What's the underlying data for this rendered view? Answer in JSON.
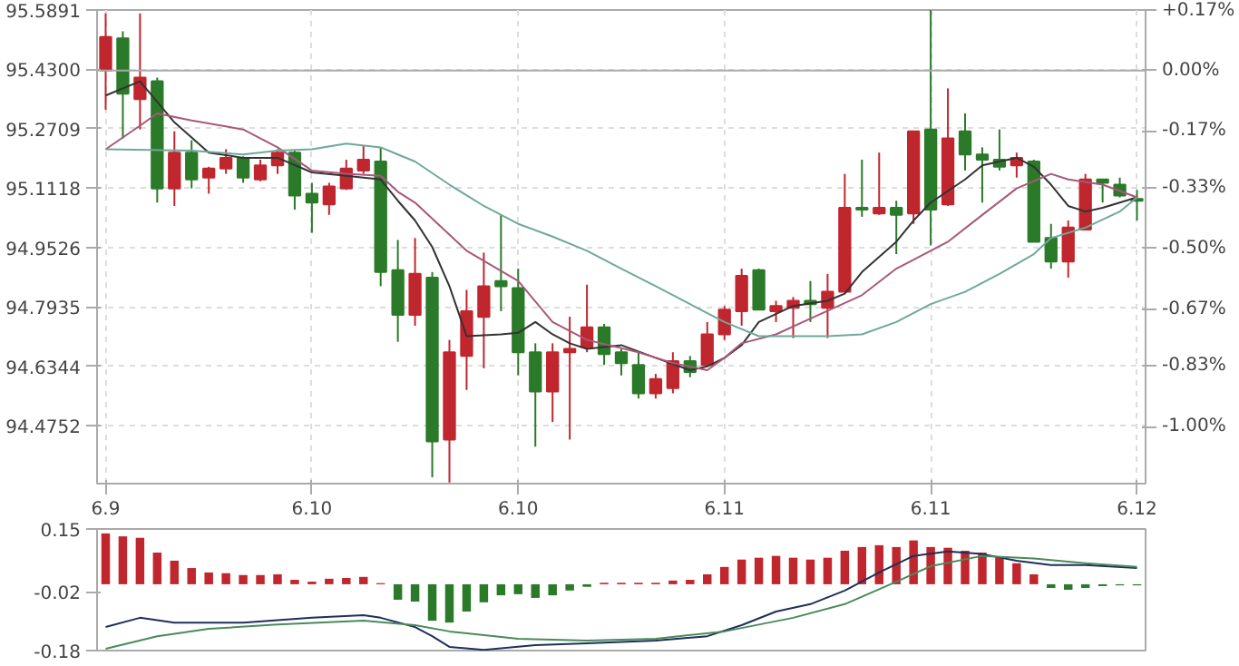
{
  "chart_data": [
    {
      "type": "candlestick",
      "categories": [
        "6.9",
        null,
        null,
        null,
        null,
        null,
        null,
        null,
        null,
        null,
        null,
        null,
        "6.10",
        null,
        null,
        null,
        null,
        null,
        null,
        null,
        null,
        null,
        null,
        null,
        "6.10",
        null,
        null,
        null,
        null,
        null,
        null,
        null,
        null,
        null,
        null,
        null,
        "6.11",
        null,
        null,
        null,
        null,
        null,
        null,
        null,
        null,
        null,
        null,
        null,
        "6.11",
        null,
        null,
        null,
        null,
        null,
        null,
        null,
        null,
        null,
        null,
        null,
        "6.12"
      ],
      "ohlc": [
        [
          95.427,
          95.58,
          95.322,
          95.517
        ],
        [
          95.513,
          95.532,
          95.245,
          95.365
        ],
        [
          95.35,
          95.58,
          95.269,
          95.408
        ],
        [
          95.398,
          95.408,
          95.073,
          95.111
        ],
        [
          95.111,
          95.264,
          95.064,
          95.207
        ],
        [
          95.207,
          95.24,
          95.111,
          95.135
        ],
        [
          95.14,
          95.169,
          95.097,
          95.164
        ],
        [
          95.164,
          95.216,
          95.15,
          95.193
        ],
        [
          95.193,
          95.197,
          95.126,
          95.14
        ],
        [
          95.135,
          95.188,
          95.13,
          95.173
        ],
        [
          95.173,
          95.216,
          95.15,
          95.207
        ],
        [
          95.207,
          95.212,
          95.054,
          95.092
        ],
        [
          95.097,
          95.126,
          94.992,
          95.073
        ],
        [
          95.068,
          95.126,
          95.04,
          95.116
        ],
        [
          95.111,
          95.188,
          95.107,
          95.164
        ],
        [
          95.159,
          95.226,
          95.15,
          95.188
        ],
        [
          95.183,
          95.221,
          94.849,
          94.887
        ],
        [
          94.892,
          94.973,
          94.7,
          94.772
        ],
        [
          94.772,
          94.978,
          94.743,
          94.882
        ],
        [
          94.872,
          94.887,
          94.337,
          94.433
        ],
        [
          94.438,
          94.705,
          94.323,
          94.672
        ],
        [
          94.662,
          94.839,
          94.571,
          94.782
        ],
        [
          94.767,
          94.939,
          94.629,
          94.849
        ],
        [
          94.863,
          95.04,
          94.782,
          94.849
        ],
        [
          94.844,
          94.896,
          94.61,
          94.672
        ],
        [
          94.672,
          94.696,
          94.419,
          94.567
        ],
        [
          94.567,
          94.696,
          94.485,
          94.672
        ],
        [
          94.672,
          94.767,
          94.438,
          94.681
        ],
        [
          94.686,
          94.853,
          94.672,
          94.739
        ],
        [
          94.739,
          94.748,
          94.638,
          94.667
        ],
        [
          94.672,
          94.681,
          94.61,
          94.643
        ],
        [
          94.638,
          94.672,
          94.548,
          94.562
        ],
        [
          94.562,
          94.614,
          94.548,
          94.6
        ],
        [
          94.576,
          94.672,
          94.562,
          94.648
        ],
        [
          94.648,
          94.662,
          94.605,
          94.619
        ],
        [
          94.638,
          94.753,
          94.634,
          94.72
        ],
        [
          94.72,
          94.796,
          94.705,
          94.786
        ],
        [
          94.782,
          94.896,
          94.743,
          94.877
        ],
        [
          94.892,
          94.896,
          94.786,
          94.786
        ],
        [
          94.782,
          94.81,
          94.753,
          94.796
        ],
        [
          94.791,
          94.82,
          94.71,
          94.81
        ],
        [
          94.81,
          94.863,
          94.753,
          94.801
        ],
        [
          94.791,
          94.882,
          94.71,
          94.834
        ],
        [
          94.834,
          95.15,
          94.834,
          95.059
        ],
        [
          95.059,
          95.188,
          95.035,
          95.054
        ],
        [
          95.044,
          95.207,
          95.04,
          95.059
        ],
        [
          95.059,
          95.078,
          94.935,
          95.04
        ],
        [
          95.044,
          95.264,
          95.016,
          95.264
        ],
        [
          95.269,
          95.589,
          94.958,
          95.054
        ],
        [
          95.068,
          95.379,
          95.064,
          95.245
        ],
        [
          95.264,
          95.312,
          95.159,
          95.202
        ],
        [
          95.202,
          95.221,
          95.073,
          95.188
        ],
        [
          95.188,
          95.269,
          95.159,
          95.169
        ],
        [
          95.173,
          95.207,
          95.14,
          95.193
        ],
        [
          95.183,
          95.188,
          94.968,
          94.968
        ],
        [
          94.978,
          95.016,
          94.896,
          94.915
        ],
        [
          94.915,
          95.025,
          94.872,
          95.006
        ],
        [
          95.001,
          95.15,
          95.001,
          95.135
        ],
        [
          95.135,
          95.135,
          95.073,
          95.126
        ],
        [
          95.121,
          95.14,
          95.087,
          95.092
        ],
        [
          95.083,
          95.107,
          95.025,
          95.078
        ]
      ],
      "colors": [
        "#c0262d",
        "#2a7a2a",
        "#c0262d",
        "#2a7a2a",
        "#c0262d",
        "#2a7a2a",
        "#c0262d",
        "#c0262d",
        "#2a7a2a",
        "#c0262d",
        "#c0262d",
        "#2a7a2a",
        "#2a7a2a",
        "#c0262d",
        "#c0262d",
        "#c0262d",
        "#2a7a2a",
        "#2a7a2a",
        "#c0262d",
        "#2a7a2a",
        "#c0262d",
        "#c0262d",
        "#c0262d",
        "#2a7a2a",
        "#2a7a2a",
        "#2a7a2a",
        "#c0262d",
        "#c0262d",
        "#c0262d",
        "#2a7a2a",
        "#2a7a2a",
        "#2a7a2a",
        "#c0262d",
        "#c0262d",
        "#2a7a2a",
        "#c0262d",
        "#c0262d",
        "#c0262d",
        "#2a7a2a",
        "#c0262d",
        "#c0262d",
        "#2a7a2a",
        "#c0262d",
        "#c0262d",
        "#2a7a2a",
        "#c0262d",
        "#2a7a2a",
        "#c0262d",
        "#2a7a2a",
        "#c0262d",
        "#2a7a2a",
        "#2a7a2a",
        "#2a7a2a",
        "#c0262d",
        "#2a7a2a",
        "#2a7a2a",
        "#c0262d",
        "#c0262d",
        "#2a7a2a",
        "#2a7a2a",
        "#2a7a2a"
      ],
      "series": [
        {
          "type": "line",
          "color": "#333333",
          "values": [
            95.36,
            null,
            95.398,
            null,
            95.288,
            null,
            95.207,
            null,
            95.193,
            null,
            95.193,
            null,
            95.154,
            null,
            95.145,
            null,
            95.135,
            95.078,
            95.025,
            94.954,
            94.849,
            94.715,
            null,
            94.72,
            94.724,
            94.753,
            94.72,
            94.696,
            94.681,
            null,
            94.691,
            null,
            94.657,
            null,
            94.624,
            94.634,
            94.657,
            94.691,
            94.753,
            null,
            94.796,
            null,
            94.81,
            94.829,
            94.887,
            null,
            94.968,
            95.025,
            95.073,
            null,
            95.135,
            95.173,
            95.183,
            95.193,
            95.169,
            95.121,
            95.064,
            95.049,
            95.059,
            95.073,
            95.087
          ]
        },
        {
          "type": "line",
          "color": "#a8587a",
          "values": [
            95.216,
            null,
            95.279,
            95.312,
            null,
            95.293,
            null,
            null,
            95.269,
            null,
            95.221,
            null,
            95.159,
            null,
            95.15,
            null,
            95.145,
            95.102,
            95.073,
            null,
            null,
            94.944,
            null,
            null,
            94.863,
            null,
            94.753,
            null,
            94.705,
            null,
            null,
            94.672,
            null,
            94.643,
            null,
            94.624,
            94.657,
            94.696,
            null,
            94.72,
            null,
            94.762,
            null,
            null,
            94.825,
            null,
            94.896,
            null,
            94.944,
            94.968,
            null,
            95.04,
            null,
            95.111,
            null,
            95.15,
            95.135,
            null,
            95.121,
            null,
            95.087
          ]
        },
        {
          "type": "line",
          "color": "#6fa89c",
          "values": [
            95.216,
            null,
            null,
            null,
            null,
            95.212,
            null,
            null,
            95.202,
            null,
            95.212,
            null,
            95.216,
            null,
            95.231,
            null,
            95.221,
            95.202,
            95.183,
            null,
            95.121,
            null,
            95.064,
            null,
            95.016,
            null,
            94.982,
            null,
            94.944,
            null,
            94.896,
            null,
            94.849,
            null,
            94.801,
            null,
            94.753,
            null,
            94.715,
            null,
            94.715,
            null,
            94.715,
            null,
            94.72,
            null,
            94.753,
            null,
            94.801,
            null,
            94.834,
            null,
            94.882,
            null,
            94.935,
            94.978,
            null,
            95.006,
            null,
            95.049,
            95.087
          ]
        }
      ],
      "ylim": [
        94.32,
        95.5891
      ],
      "yticks": [
        95.5891,
        {
          "value": 95.43,
          "label": "95.4300"
        },
        95.2709,
        95.1118,
        94.9526,
        94.7935,
        94.6344,
        94.4752
      ],
      "y2lim": [
        -1.16,
        0.17
      ],
      "y2ticks": [
        {
          "value": 0.17,
          "label": "+0.17%"
        },
        {
          "value": 0,
          "label": "0.00%"
        },
        {
          "value": -0.17,
          "label": "-0.17%"
        },
        {
          "value": -0.33,
          "label": "-0.33%"
        },
        {
          "value": -0.5,
          "label": "-0.50%"
        },
        {
          "value": -0.67,
          "label": "-0.67%"
        },
        {
          "value": -0.83,
          "label": "-0.83%"
        },
        {
          "value": -1.0,
          "label": "-1.00%"
        }
      ],
      "ref_lines": [
        {
          "axis": "y2",
          "value": 0,
          "color": "#aaaaaa"
        }
      ],
      "grid": true
    },
    {
      "type": "bar",
      "categories": [
        null,
        null,
        null,
        null,
        null,
        null,
        null,
        null,
        null,
        null,
        null,
        null,
        null,
        null,
        null,
        null,
        null,
        null,
        null,
        null,
        null,
        null,
        null,
        null,
        null,
        null,
        null,
        null,
        null,
        null,
        null,
        null,
        null,
        null,
        null,
        null,
        null,
        null,
        null,
        null,
        null,
        null,
        null,
        null,
        null,
        null,
        null,
        null,
        null,
        null,
        null,
        null,
        null,
        null,
        null,
        null,
        null,
        null,
        null,
        null,
        null
      ],
      "colors": [
        "#c0262d",
        "#c0262d",
        "#c0262d",
        "#c0262d",
        "#c0262d",
        "#c0262d",
        "#c0262d",
        "#c0262d",
        "#c0262d",
        "#c0262d",
        "#c0262d",
        "#c0262d",
        "#c0262d",
        "#c0262d",
        "#c0262d",
        "#c0262d",
        "#c0262d",
        "#2a7a2a",
        "#2a7a2a",
        "#2a7a2a",
        "#2a7a2a",
        "#2a7a2a",
        "#2a7a2a",
        "#2a7a2a",
        "#2a7a2a",
        "#2a7a2a",
        "#2a7a2a",
        "#2a7a2a",
        "#2a7a2a",
        "#c0262d",
        "#c0262d",
        "#c0262d",
        "#c0262d",
        "#c0262d",
        "#c0262d",
        "#c0262d",
        "#c0262d",
        "#c0262d",
        "#c0262d",
        "#c0262d",
        "#c0262d",
        "#c0262d",
        "#c0262d",
        "#c0262d",
        "#c0262d",
        "#c0262d",
        "#c0262d",
        "#c0262d",
        "#c0262d",
        "#c0262d",
        "#c0262d",
        "#c0262d",
        "#c0262d",
        "#c0262d",
        "#c0262d",
        "#2a7a2a",
        "#2a7a2a",
        "#2a7a2a",
        "#2a7a2a",
        "#2a7a2a",
        "#2a7a2a"
      ],
      "values": [
        0.138,
        0.13,
        0.126,
        0.086,
        0.064,
        0.044,
        0.032,
        0.03,
        0.025,
        0.025,
        0.027,
        0.012,
        0.007,
        0.015,
        0.017,
        0.02,
        0.003,
        -0.042,
        -0.047,
        -0.099,
        -0.104,
        -0.074,
        -0.049,
        -0.03,
        -0.027,
        -0.037,
        -0.03,
        -0.017,
        -0.007,
        0.004,
        0.004,
        0.004,
        0.004,
        0.01,
        0.012,
        0.027,
        0.047,
        0.067,
        0.072,
        0.077,
        0.072,
        0.067,
        0.072,
        0.091,
        0.101,
        0.106,
        0.101,
        0.119,
        0.101,
        0.099,
        0.091,
        0.086,
        0.074,
        0.057,
        0.027,
        -0.01,
        -0.015,
        -0.01,
        -0.005,
        -0.003,
        -0.003
      ],
      "series": [
        {
          "type": "line",
          "color": "#1f2f5a",
          "values": [
            -0.116,
            null,
            -0.091,
            null,
            -0.104,
            null,
            null,
            null,
            -0.104,
            null,
            null,
            null,
            -0.091,
            null,
            null,
            -0.084,
            -0.091,
            null,
            -0.116,
            -0.141,
            -0.17,
            null,
            -0.178,
            null,
            null,
            -0.165,
            null,
            null,
            -0.16,
            null,
            null,
            null,
            -0.153,
            null,
            null,
            -0.141,
            null,
            -0.111,
            null,
            -0.074,
            null,
            -0.054,
            null,
            -0.017,
            null,
            0.032,
            null,
            0.077,
            null,
            0.089,
            null,
            0.082,
            null,
            0.064,
            null,
            0.052,
            null,
            0.052,
            null,
            null,
            0.044
          ]
        },
        {
          "type": "line",
          "color": "#4a8a5a",
          "values": [
            -0.175,
            null,
            null,
            -0.141,
            null,
            null,
            -0.121,
            null,
            null,
            null,
            -0.109,
            null,
            null,
            null,
            null,
            -0.099,
            null,
            null,
            -0.111,
            null,
            -0.128,
            null,
            null,
            null,
            -0.148,
            null,
            null,
            null,
            -0.153,
            null,
            null,
            null,
            -0.148,
            null,
            null,
            null,
            -0.128,
            null,
            null,
            null,
            -0.091,
            null,
            null,
            -0.054,
            null,
            null,
            0.007,
            null,
            0.049,
            null,
            null,
            0.077,
            null,
            null,
            0.07,
            null,
            null,
            0.057,
            null,
            null,
            0.047
          ]
        }
      ],
      "ylim": [
        -0.18,
        0.15
      ],
      "yticks": [
        0.15,
        -0.02,
        -0.18
      ],
      "tick_labels": "y",
      "grid": false
    }
  ]
}
